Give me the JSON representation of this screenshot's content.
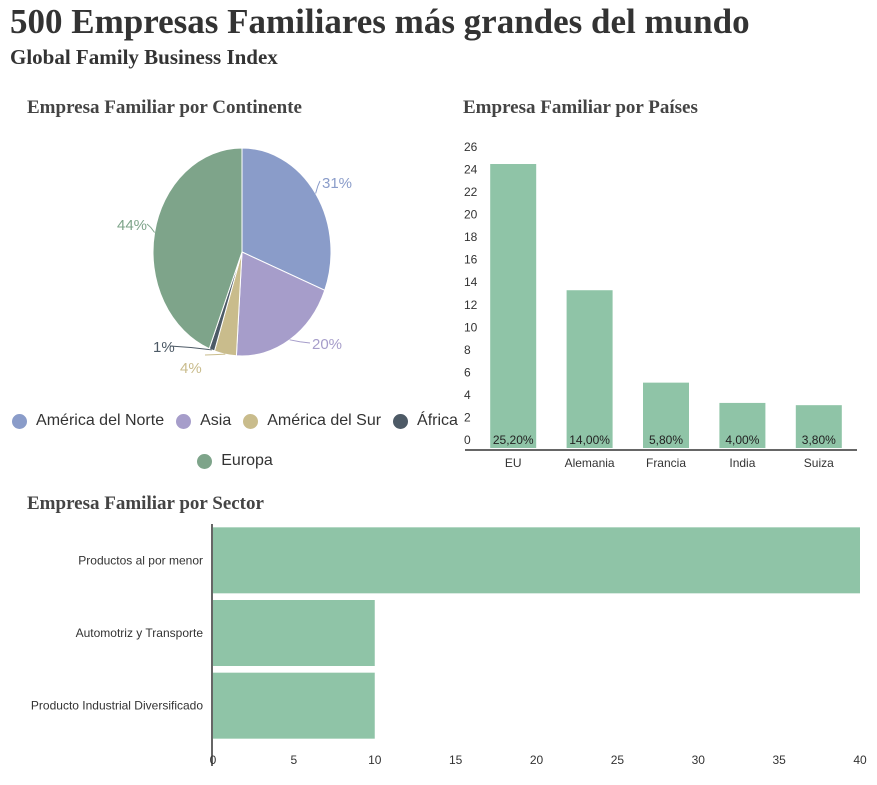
{
  "header": {
    "title": "500 Empresas Familiares más grandes del mundo",
    "subtitle": "Global Family Business Index"
  },
  "chart_data": [
    {
      "type": "pie",
      "title": "Empresa Familiar por Continente",
      "slices": [
        {
          "label": "América del Norte",
          "value": 31,
          "display": "31%",
          "color": "#8a9cc9"
        },
        {
          "label": "Asia",
          "value": 20,
          "display": "20%",
          "color": "#a69dca"
        },
        {
          "label": "América del Sur",
          "value": 4,
          "display": "4%",
          "color": "#c9bc8c"
        },
        {
          "label": "África",
          "value": 1,
          "display": "1%",
          "color": "#4d5a66"
        },
        {
          "label": "Europa",
          "value": 44,
          "display": "44%",
          "color": "#7ea48a"
        }
      ],
      "legend": [
        "América del Norte",
        "Asia",
        "América del Sur",
        "África",
        "Europa"
      ]
    },
    {
      "type": "bar",
      "title": "Empresa Familiar por Países",
      "categories": [
        "EU",
        "Alemania",
        "Francia",
        "India",
        "Suiza"
      ],
      "values": [
        25.2,
        14.0,
        5.8,
        4.0,
        3.8
      ],
      "data_labels": [
        "25,20%",
        "14,00%",
        "5,80%",
        "4,00%",
        "3,80%"
      ],
      "yticks": [
        "0",
        "2",
        "4",
        "6",
        "8",
        "10",
        "12",
        "14",
        "16",
        "18",
        "20",
        "22",
        "24",
        "26"
      ],
      "ylim": [
        0,
        26
      ],
      "color": "#8fc4a7"
    },
    {
      "type": "bar",
      "orientation": "horizontal",
      "title": "Empresa Familiar por Sector",
      "categories": [
        "Productos al por menor",
        "Automotriz y Transporte",
        "Producto Industrial Diversificado"
      ],
      "values": [
        40,
        10,
        10
      ],
      "xticks": [
        "0",
        "5",
        "10",
        "15",
        "20",
        "25",
        "30",
        "35",
        "40"
      ],
      "xlim": [
        0,
        40
      ],
      "color": "#8fc4a7"
    }
  ]
}
